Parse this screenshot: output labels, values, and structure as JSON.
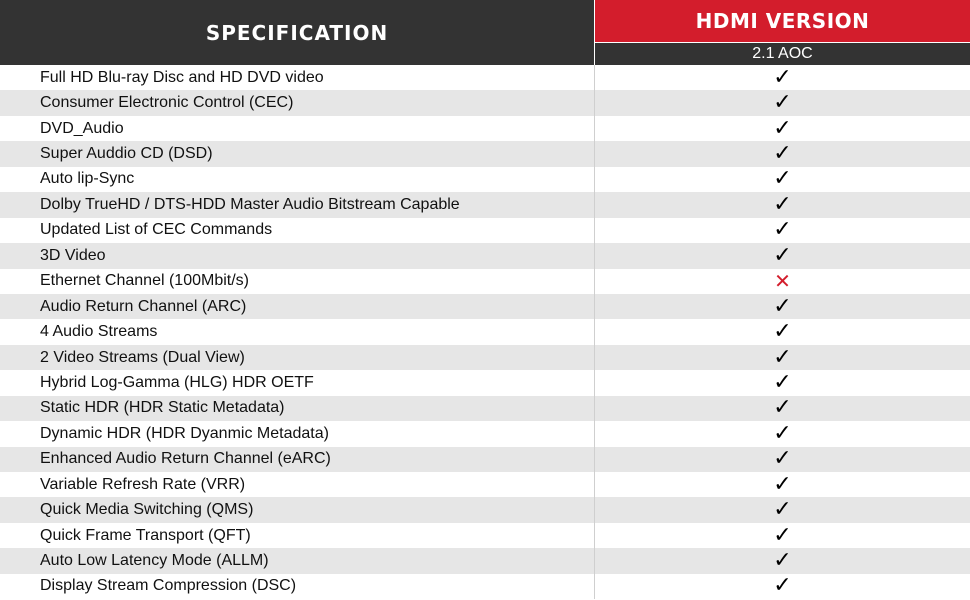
{
  "header": {
    "spec_label": "SPECIFICATION",
    "version_label": "HDMI VERSION",
    "version_sub": "2.1 AOC"
  },
  "icons": {
    "supported": "check-icon",
    "unsupported": "cross-icon"
  },
  "colors": {
    "header_dark": "#333333",
    "accent_red": "#d31d2c",
    "row_alt": "#e6e6e6"
  },
  "rows": [
    {
      "label": "Full HD Blu-ray Disc and HD DVD video",
      "supported": true
    },
    {
      "label": "Consumer Electronic Control (CEC)",
      "supported": true
    },
    {
      "label": "DVD_Audio",
      "supported": true
    },
    {
      "label": "Super Auddio CD (DSD)",
      "supported": true
    },
    {
      "label": "Auto lip-Sync",
      "supported": true
    },
    {
      "label": "Dolby TrueHD / DTS-HDD Master Audio Bitstream Capable",
      "supported": true
    },
    {
      "label": "Updated List of CEC Commands",
      "supported": true
    },
    {
      "label": "3D Video",
      "supported": true
    },
    {
      "label": "Ethernet Channel (100Mbit/s)",
      "supported": false
    },
    {
      "label": "Audio Return Channel (ARC)",
      "supported": true
    },
    {
      "label": "4 Audio Streams",
      "supported": true
    },
    {
      "label": "2 Video Streams (Dual View)",
      "supported": true
    },
    {
      "label": "Hybrid Log-Gamma (HLG) HDR OETF",
      "supported": true
    },
    {
      "label": "Static HDR (HDR Static Metadata)",
      "supported": true
    },
    {
      "label": "Dynamic HDR (HDR Dyanmic Metadata)",
      "supported": true
    },
    {
      "label": "Enhanced Audio Return Channel (eARC)",
      "supported": true
    },
    {
      "label": "Variable Refresh Rate (VRR)",
      "supported": true
    },
    {
      "label": "Quick Media Switching (QMS)",
      "supported": true
    },
    {
      "label": "Quick Frame Transport (QFT)",
      "supported": true
    },
    {
      "label": "Auto Low Latency Mode (ALLM)",
      "supported": true
    },
    {
      "label": "Display Stream Compression (DSC)",
      "supported": true
    }
  ]
}
